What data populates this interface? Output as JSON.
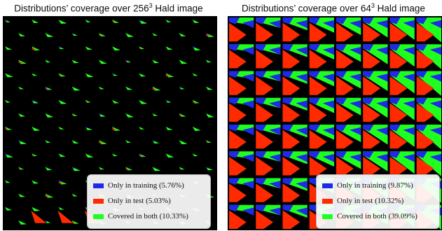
{
  "panels": [
    {
      "title_prefix": "Distributions’ coverage over 256",
      "title_exp": "3",
      "title_suffix": " Hald image",
      "legend": [
        {
          "label": "Only in training (5.76%)",
          "color": "#1f2ae6"
        },
        {
          "label": "Only in test (5.03%)",
          "color": "#ff2a00"
        },
        {
          "label": "Covered in both (10.33%)",
          "color": "#1fff1f"
        }
      ]
    },
    {
      "title_prefix": "Distributions’ coverage over 64",
      "title_exp": "3",
      "title_suffix": " Hald image",
      "legend": [
        {
          "label": "Only in training (9.87%)",
          "color": "#1f2ae6"
        },
        {
          "label": "Only in test (10.32%)",
          "color": "#ff2a00"
        },
        {
          "label": "Covered in both (39.09%)",
          "color": "#1fff1f"
        }
      ]
    }
  ],
  "colors": {
    "training": "#1f2ae6",
    "test": "#ff2a00",
    "both": "#1fff1f",
    "background": "#000000"
  }
}
